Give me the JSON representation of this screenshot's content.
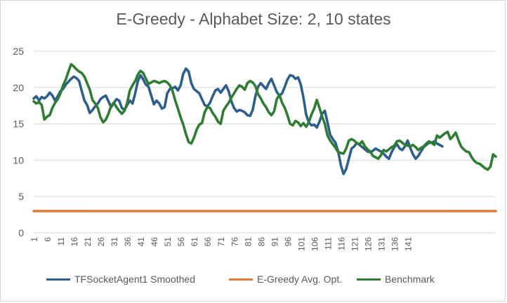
{
  "chart_data": {
    "type": "line",
    "title": "E-Greedy - Alphabet Size: 2, 10 states",
    "xlabel": "",
    "ylabel": "",
    "ylim": [
      0,
      25
    ],
    "yticks": [
      0,
      5,
      10,
      15,
      20,
      25
    ],
    "xticks": [
      1,
      6,
      11,
      16,
      21,
      26,
      31,
      36,
      41,
      46,
      51,
      56,
      61,
      66,
      71,
      76,
      81,
      86,
      91,
      96,
      101,
      106,
      111,
      116,
      121,
      126,
      131,
      136,
      141
    ],
    "grid": true,
    "legend_position": "bottom",
    "x_start": 1,
    "series": [
      {
        "name": "TFSocketAgent1 Smoothed",
        "color": "#2e5f8a",
        "values": [
          18.5,
          18.8,
          18.2,
          18.7,
          18.5,
          18.8,
          19.3,
          18.9,
          18.2,
          18.8,
          19.5,
          19.8,
          20.4,
          20.8,
          21.2,
          21.5,
          21.3,
          20.9,
          19.5,
          18.2,
          17.6,
          16.5,
          16.9,
          17.4,
          17.8,
          18.4,
          18.7,
          18.9,
          18.1,
          17.3,
          17.9,
          18.4,
          18.2,
          17.2,
          16.9,
          17.6,
          18.2,
          17.8,
          19.2,
          20.9,
          21.7,
          21.1,
          20.4,
          20.1,
          18.9,
          17.7,
          18.2,
          17.8,
          17.1,
          17.3,
          19.2,
          19.8,
          19.9,
          20.1,
          19.6,
          20.3,
          21.9,
          22.6,
          22.2,
          20.6,
          19.8,
          19.5,
          19.2,
          18.4,
          17.6,
          17.4,
          17.9,
          18.8,
          19.6,
          19.8,
          19.3,
          19.8,
          20.3,
          19.5,
          18.1,
          17.2,
          16.7,
          16.9,
          16.8,
          16.6,
          16.2,
          16.1,
          16.9,
          18.8,
          20.1,
          20.6,
          20.2,
          19.8,
          20.6,
          21.2,
          20.3,
          19.4,
          18.9,
          19.2,
          20.1,
          21.1,
          21.7,
          21.6,
          21.2,
          21.4,
          20.4,
          18.6,
          16.3,
          15.2,
          14.8,
          14.9,
          14.5,
          15.3,
          16.4,
          16.8,
          15.2,
          13.5,
          12.9,
          12.4,
          11.2,
          9.3,
          8.1,
          8.8,
          10.2,
          11.6,
          11.9,
          12.4,
          12.1,
          11.8,
          11.5,
          11.2,
          11.1,
          11.3,
          11.6,
          11.4,
          11.2,
          10.9,
          10.5,
          10.2,
          11.1,
          11.8,
          12.2,
          11.6,
          11.4,
          11.9,
          12.7,
          11.7,
          10.8,
          10.2,
          10.6,
          11.2,
          11.8,
          12.1,
          12.4,
          12.4,
          12.6,
          12.3,
          12.1,
          11.9
        ]
      },
      {
        "name": "E-Greedy Avg. Opt.",
        "color": "#e07b39",
        "values": [
          3.0
        ]
      },
      {
        "name": "Benchmark",
        "color": "#2e7d32",
        "values": [
          18.1,
          17.8,
          18.0,
          17.6,
          15.6,
          16.0,
          16.2,
          17.2,
          17.9,
          18.4,
          19.2,
          20.3,
          21.1,
          22.2,
          23.2,
          22.9,
          22.5,
          22.2,
          22.0,
          21.5,
          20.6,
          19.7,
          18.3,
          17.8,
          17.2,
          15.9,
          15.2,
          15.6,
          16.4,
          17.5,
          17.9,
          17.3,
          16.8,
          16.4,
          16.8,
          17.9,
          19.6,
          20.3,
          20.9,
          21.8,
          22.3,
          22.0,
          21.2,
          20.5,
          20.7,
          20.9,
          20.8,
          20.6,
          20.8,
          20.9,
          20.7,
          20.3,
          19.5,
          18.2,
          17.1,
          15.9,
          14.9,
          13.6,
          12.5,
          12.3,
          13.1,
          14.2,
          14.9,
          15.1,
          16.6,
          17.3,
          17.2,
          16.5,
          16.0,
          15.3,
          15.0,
          16.8,
          17.4,
          17.9,
          18.6,
          19.2,
          19.8,
          20.3,
          20.1,
          19.7,
          20.6,
          20.9,
          20.7,
          20.2,
          19.1,
          18.5,
          17.8,
          17.3,
          16.6,
          16.2,
          16.7,
          18.4,
          19.0,
          17.9,
          17.2,
          16.2,
          15.0,
          14.8,
          15.4,
          15.2,
          14.7,
          15.1,
          14.6,
          15.2,
          16.3,
          17.1,
          18.3,
          17.2,
          16.0,
          15.0,
          13.4,
          12.7,
          12.2,
          11.7,
          11.1,
          11.0,
          10.9,
          11.6,
          12.7,
          12.9,
          12.7,
          12.3,
          12.2,
          12.6,
          11.9,
          11.5,
          11.2,
          10.6,
          10.4,
          10.2,
          10.7,
          11.4,
          11.2,
          11.5,
          11.8,
          12.0,
          12.6,
          12.7,
          12.4,
          12.1,
          12.0,
          11.9,
          12.1,
          11.8,
          11.4,
          11.7,
          11.9,
          12.3,
          12.6,
          12.4,
          12.1,
          13.4,
          13.1,
          13.4,
          13.7,
          13.9,
          12.9,
          13.3,
          13.8,
          12.8,
          11.9,
          11.5,
          11.2,
          11.1,
          10.4,
          9.9,
          9.6,
          9.5,
          9.2,
          8.9,
          8.7,
          9.1,
          10.8,
          10.5
        ]
      }
    ]
  }
}
